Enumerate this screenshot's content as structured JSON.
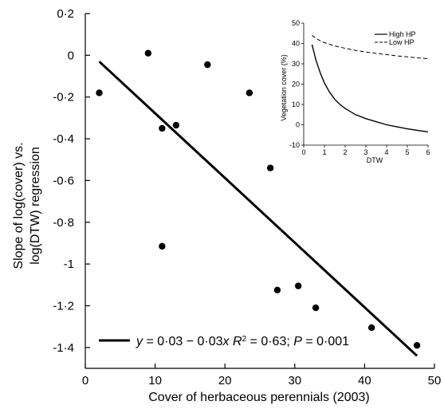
{
  "chart_data": [
    {
      "type": "scatter",
      "xlabel": "Cover of herbaceous perennials (2003)",
      "ylabel": [
        "Slope of log(cover) vs.",
        "log(DTW) regression"
      ],
      "xlim": [
        0,
        50
      ],
      "ylim": [
        -1.5,
        0.2
      ],
      "xticks": [
        0,
        10,
        20,
        30,
        40,
        50
      ],
      "xtick_labels": [
        "0",
        "10",
        "20",
        "30",
        "40",
        "50"
      ],
      "yticks": [
        0.2,
        0,
        -0.2,
        -0.4,
        -0.6,
        -0.8,
        -1,
        -1.2,
        -1.4
      ],
      "ytick_labels": [
        "0·2",
        "0",
        "-0·2",
        "-0·4",
        "-0·6",
        "-0·8",
        "-1",
        "-1·2",
        "-1·4"
      ],
      "points": [
        {
          "x": 2,
          "y": -0.18
        },
        {
          "x": 9,
          "y": 0.01
        },
        {
          "x": 11,
          "y": -0.35
        },
        {
          "x": 13,
          "y": -0.335
        },
        {
          "x": 11,
          "y": -0.915
        },
        {
          "x": 17.5,
          "y": -0.045
        },
        {
          "x": 23.5,
          "y": -0.18
        },
        {
          "x": 26.5,
          "y": -0.54
        },
        {
          "x": 27.5,
          "y": -1.125
        },
        {
          "x": 30.5,
          "y": -1.105
        },
        {
          "x": 33,
          "y": -1.21
        },
        {
          "x": 41,
          "y": -1.305
        },
        {
          "x": 47.5,
          "y": -1.39
        }
      ],
      "fit_line": {
        "x": [
          2,
          47.5
        ],
        "y": [
          -0.03,
          -1.44
        ]
      },
      "legend": {
        "equation_y": "y",
        "equation_mid": " = 0·03 − 0·03",
        "equation_x": "x",
        "r2_label": "R",
        "r2_exp": "2",
        "r2_value": " = 0·63; ",
        "p_label": "P",
        "p_value": " = 0·001"
      }
    },
    {
      "type": "line",
      "xlabel": "DTW",
      "ylabel": "Vegetation cover (%)",
      "xlim": [
        0,
        6
      ],
      "ylim": [
        -10,
        50
      ],
      "xticks": [
        0,
        1,
        2,
        3,
        4,
        5,
        6
      ],
      "xtick_labels": [
        "0",
        "1",
        "2",
        "3",
        "4",
        "5",
        "6"
      ],
      "yticks": [
        -10,
        0,
        10,
        20,
        30,
        40,
        50
      ],
      "ytick_labels": [
        "-10",
        "0",
        "10",
        "20",
        "30",
        "40",
        "50"
      ],
      "legend_position": "top-right",
      "series": [
        {
          "name": "High HP",
          "style": "solid",
          "x": [
            0.4,
            0.6,
            0.8,
            1.0,
            1.25,
            1.5,
            1.75,
            2.0,
            2.5,
            3.0,
            3.5,
            4.0,
            4.5,
            5.0,
            5.5,
            6.0
          ],
          "y": [
            39.5,
            31.5,
            25.5,
            20.5,
            16,
            12.5,
            10,
            8,
            5,
            3,
            1.5,
            0,
            -1,
            -2,
            -2.8,
            -3.5
          ]
        },
        {
          "name": "Low HP",
          "style": "dashed",
          "x": [
            0.4,
            0.6,
            0.8,
            1.0,
            1.5,
            2.0,
            2.5,
            3.0,
            3.5,
            4.0,
            4.5,
            5.0,
            5.5,
            6.0
          ],
          "y": [
            44,
            42.5,
            41.3,
            40.4,
            38.8,
            37.6,
            36.6,
            35.8,
            35.1,
            34.5,
            33.9,
            33.4,
            32.9,
            32.5
          ]
        }
      ]
    }
  ]
}
